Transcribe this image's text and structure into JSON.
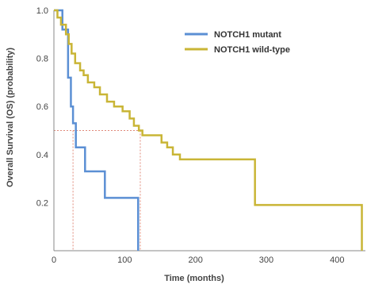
{
  "chart_data": {
    "type": "line",
    "step": true,
    "xlabel": "Time (months)",
    "ylabel": "Overall Survival (OS) (probability)",
    "xlim": [
      0,
      440
    ],
    "ylim": [
      0,
      1.0
    ],
    "xticks": [
      0,
      100,
      200,
      300,
      400
    ],
    "yticks": [
      0.2,
      0.4,
      0.6,
      0.8,
      1.0
    ],
    "ytick_labels": [
      "0.2",
      "0.4",
      "0.6",
      "0.8",
      "1.0"
    ],
    "grid": false,
    "legend_position": "top-right",
    "median_line_y": 0.5,
    "colors": {
      "mutant": "#5b8fd4",
      "wildtype": "#c9b536",
      "median_guides": "#e08a7a"
    },
    "series": [
      {
        "name": "NOTCH1 mutant",
        "color": "#5b8fd4",
        "points": [
          [
            0,
            1.0
          ],
          [
            12,
            0.92
          ],
          [
            20,
            0.72
          ],
          [
            24,
            0.6
          ],
          [
            27,
            0.53
          ],
          [
            31,
            0.43
          ],
          [
            44,
            0.33
          ],
          [
            60,
            0.33
          ],
          [
            72,
            0.22
          ],
          [
            100,
            0.22
          ],
          [
            119,
            0.22
          ],
          [
            119,
            0.0
          ]
        ]
      },
      {
        "name": "NOTCH1 wild-type",
        "color": "#c9b536",
        "points": [
          [
            0,
            1.0
          ],
          [
            5,
            0.97
          ],
          [
            10,
            0.94
          ],
          [
            17,
            0.9
          ],
          [
            21,
            0.86
          ],
          [
            25,
            0.82
          ],
          [
            30,
            0.78
          ],
          [
            37,
            0.75
          ],
          [
            42,
            0.73
          ],
          [
            48,
            0.7
          ],
          [
            57,
            0.68
          ],
          [
            65,
            0.65
          ],
          [
            75,
            0.62
          ],
          [
            85,
            0.6
          ],
          [
            97,
            0.58
          ],
          [
            107,
            0.55
          ],
          [
            113,
            0.52
          ],
          [
            120,
            0.5
          ],
          [
            125,
            0.48
          ],
          [
            145,
            0.48
          ],
          [
            152,
            0.45
          ],
          [
            160,
            0.43
          ],
          [
            168,
            0.4
          ],
          [
            178,
            0.38
          ],
          [
            284,
            0.38
          ],
          [
            284,
            0.19
          ],
          [
            435,
            0.19
          ],
          [
            435,
            0.0
          ]
        ]
      }
    ],
    "median_x": [
      27,
      122
    ]
  }
}
